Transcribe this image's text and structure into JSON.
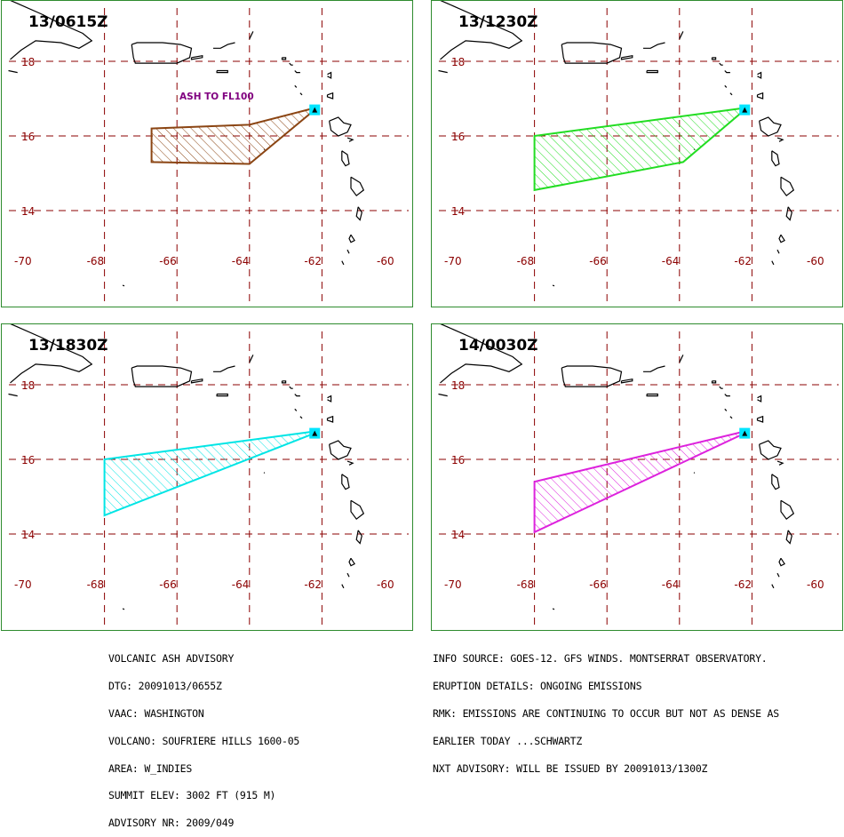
{
  "colors": {
    "frame": "#2e8b2e",
    "grid": "#8b0000",
    "tick_label": "#8b0000",
    "coast": "#000000",
    "annotation": "#800080",
    "volcano_marker": "#00e5ff"
  },
  "axes": {
    "lon_ticks": [
      -70,
      -68,
      -66,
      -64,
      -62,
      -60
    ],
    "lat_ticks": [
      18,
      16,
      14
    ],
    "lon_labels": [
      "-70",
      "-68",
      "-66",
      "-64",
      "-62",
      "-60"
    ],
    "lat_labels": [
      "18",
      "16",
      "14"
    ]
  },
  "volcano": {
    "lon": -62.2,
    "lat": 16.7
  },
  "panels": [
    {
      "id": "p1",
      "time_label": "13/0615Z",
      "polygon_color": "#8b4513",
      "annotation": "ASH TO FL100",
      "polygon": [
        [
          -62.2,
          16.75
        ],
        [
          -64.0,
          16.3
        ],
        [
          -66.7,
          16.2
        ],
        [
          -66.7,
          15.3
        ],
        [
          -64.0,
          15.25
        ],
        [
          -62.2,
          16.7
        ]
      ]
    },
    {
      "id": "p2",
      "time_label": "13/1230Z",
      "polygon_color": "#22dd22",
      "annotation": "",
      "polygon": [
        [
          -62.2,
          16.75
        ],
        [
          -68.0,
          16.0
        ],
        [
          -68.0,
          14.55
        ],
        [
          -63.9,
          15.3
        ],
        [
          -62.2,
          16.7
        ]
      ]
    },
    {
      "id": "p3",
      "time_label": "13/1830Z",
      "polygon_color": "#00e5e5",
      "annotation": "",
      "polygon": [
        [
          -62.2,
          16.75
        ],
        [
          -68.0,
          16.0
        ],
        [
          -68.0,
          14.5
        ],
        [
          -62.2,
          16.7
        ]
      ]
    },
    {
      "id": "p4",
      "time_label": "14/0030Z",
      "polygon_color": "#dd22dd",
      "annotation": "",
      "polygon": [
        [
          -62.2,
          16.75
        ],
        [
          -68.0,
          15.4
        ],
        [
          -68.0,
          14.05
        ],
        [
          -62.2,
          16.7
        ]
      ]
    }
  ],
  "advisory_left": [
    "VOLCANIC ASH ADVISORY",
    "DTG: 20091013/0655Z",
    "VAAC: WASHINGTON",
    "VOLCANO: SOUFRIERE HILLS 1600-05",
    "AREA: W_INDIES",
    "SUMMIT ELEV: 3002 FT (915 M)",
    "ADVISORY NR: 2009/049"
  ],
  "advisory_right": [
    "INFO SOURCE: GOES-12. GFS WINDS. MONTSERRAT OBSERVATORY.",
    "ERUPTION DETAILS: ONGOING EMISSIONS",
    "RMK: EMISSIONS ARE CONTINUING TO OCCUR BUT NOT AS DENSE AS",
    "EARLIER TODAY ...SCHWARTZ",
    "NXT ADVISORY: WILL BE ISSUED BY 20091013/1300Z"
  ]
}
